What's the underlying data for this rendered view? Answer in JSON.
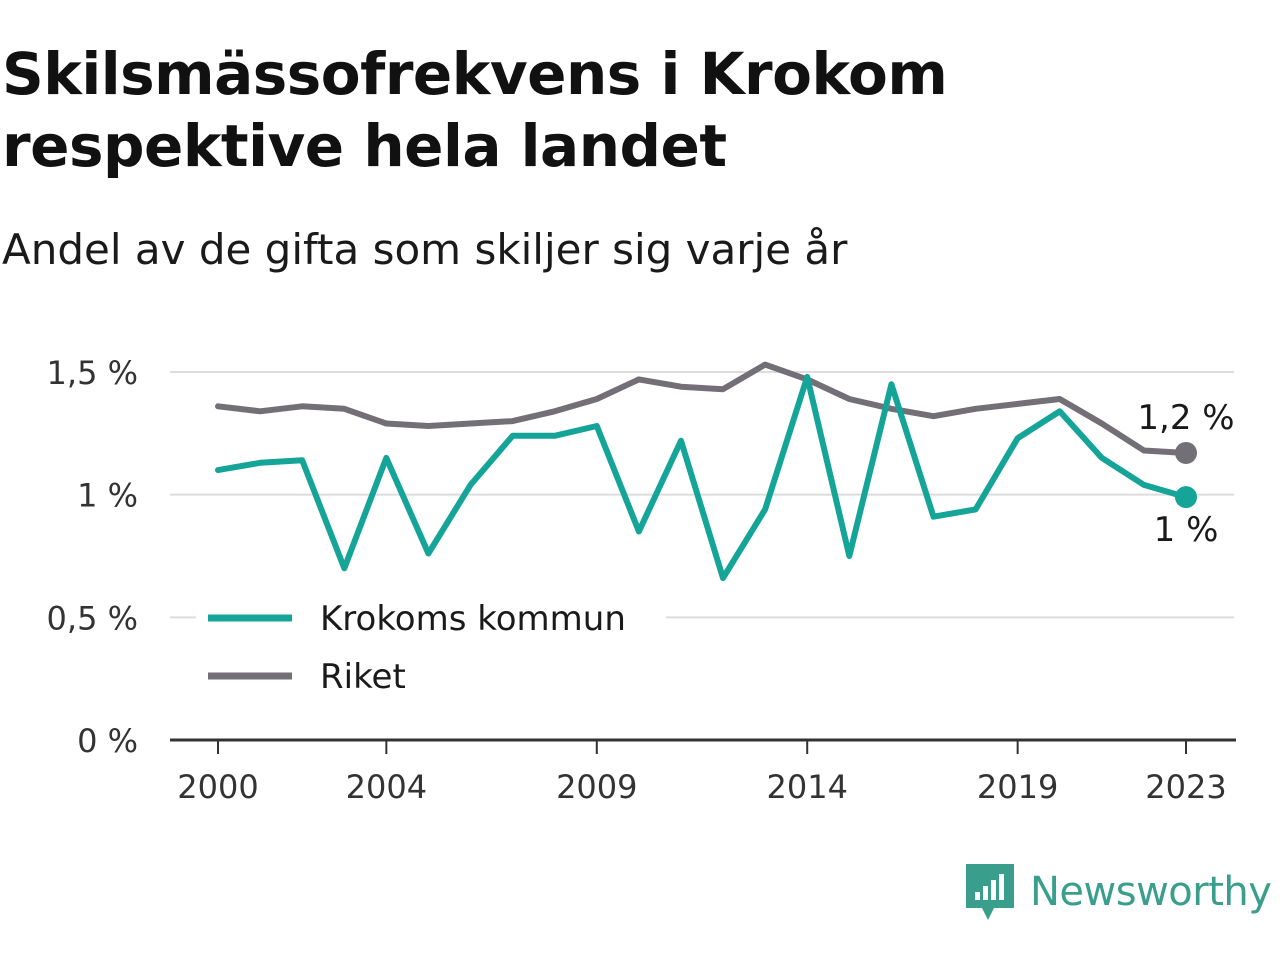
{
  "header": {
    "title": "Skilsmässofrekvens i Krokom respektive hela landet",
    "subtitle": "Andel av de gifta som skiljer sig varje år"
  },
  "brand": {
    "name": "Newsworthy",
    "icon": "newsworthy-logo-icon",
    "color": "#3a9e8c"
  },
  "chart_data": {
    "type": "line",
    "x": [
      2000,
      2001,
      2002,
      2003,
      2004,
      2005,
      2006,
      2007,
      2008,
      2009,
      2010,
      2011,
      2012,
      2013,
      2014,
      2015,
      2016,
      2017,
      2018,
      2019,
      2020,
      2021,
      2022,
      2023
    ],
    "x_tick_labels": [
      "2000",
      "2004",
      "2009",
      "2014",
      "2019",
      "2023"
    ],
    "y_tick_labels": [
      "0 %",
      "0,5 %",
      "1 %",
      "1,5 %"
    ],
    "ylim": [
      0,
      1.5
    ],
    "grid": true,
    "legend_position": "bottom-left",
    "series": [
      {
        "name": "Krokoms kommun",
        "color": "#15a498",
        "values": [
          1.1,
          1.13,
          1.14,
          0.7,
          1.15,
          0.76,
          1.04,
          1.24,
          1.24,
          1.28,
          0.85,
          1.22,
          0.66,
          0.94,
          1.48,
          0.75,
          1.45,
          0.91,
          0.94,
          1.23,
          1.34,
          1.15,
          1.04,
          0.99
        ],
        "end_label": "1 %"
      },
      {
        "name": "Riket",
        "color": "#727076",
        "values": [
          1.36,
          1.34,
          1.36,
          1.35,
          1.29,
          1.28,
          1.29,
          1.3,
          1.34,
          1.39,
          1.47,
          1.44,
          1.43,
          1.53,
          1.47,
          1.39,
          1.35,
          1.32,
          1.35,
          1.37,
          1.39,
          1.29,
          1.18,
          1.17
        ],
        "end_label": "1,2 %"
      }
    ]
  }
}
